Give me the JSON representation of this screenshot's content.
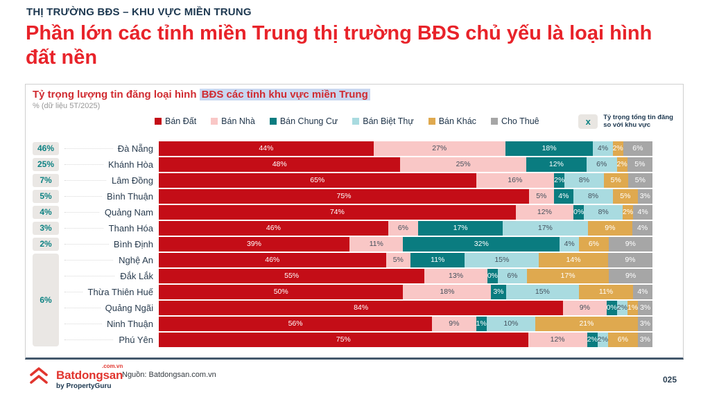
{
  "header": {
    "eyebrow": "THỊ TRƯỜNG BĐS – KHU VỰC MIỀN TRUNG",
    "title": "Phần lớn các tỉnh miền Trung thị trường BĐS chủ yếu là loại hình đất nền"
  },
  "panel": {
    "title_plain": "Tỷ trọng lượng tin đăng loại hình ",
    "title_highlight": "BĐS các tỉnh khu vực miền Trung",
    "subtitle": "% (dữ liệu 5T/2025)",
    "note_badge": "x",
    "note_line1": "Tỷ trọng tổng tin đăng",
    "note_line2": "so với khu vực"
  },
  "chart_data": {
    "type": "bar",
    "orientation": "horizontal-stacked",
    "title": "Tỷ trọng lượng tin đăng loại hình BĐS các tỉnh khu vực miền Trung",
    "subtitle": "% (dữ liệu 5T/2025)",
    "unit": "%",
    "xlim": [
      0,
      100
    ],
    "legend_position": "top",
    "series_names": [
      "Bán Đất",
      "Bán Nhà",
      "Bán Chung Cư",
      "Bán Biệt Thự",
      "Bán Khác",
      "Cho Thuê"
    ],
    "series_colors": [
      "#c40d17",
      "#f9c7c6",
      "#0a7c80",
      "#a9dbe0",
      "#dfa94f",
      "#a6a6a6"
    ],
    "series_label_colors": [
      "#ffffff",
      "#44505c",
      "#ffffff",
      "#44505c",
      "#ffffff",
      "#ffffff"
    ],
    "categories": [
      "Đà Nẵng",
      "Khánh Hòa",
      "Lâm Đồng",
      "Bình Thuận",
      "Quảng Nam",
      "Thanh Hóa",
      "Bình Định",
      "Nghệ An",
      "Đắk Lắk",
      "Thừa Thiên Huế",
      "Quảng Ngãi",
      "Ninh Thuận",
      "Phú Yên"
    ],
    "rows": [
      {
        "province": "Đà Nẵng",
        "share": "46%",
        "values": [
          44,
          27,
          18,
          4,
          2,
          6
        ]
      },
      {
        "province": "Khánh Hòa",
        "share": "25%",
        "values": [
          48,
          25,
          12,
          6,
          2,
          5
        ]
      },
      {
        "province": "Lâm Đồng",
        "share": "7%",
        "values": [
          65,
          16,
          2,
          8,
          5,
          5
        ]
      },
      {
        "province": "Bình Thuận",
        "share": "5%",
        "values": [
          75,
          5,
          4,
          8,
          5,
          3
        ]
      },
      {
        "province": "Quảng Nam",
        "share": "4%",
        "values": [
          74,
          12,
          0,
          8,
          2,
          4
        ]
      },
      {
        "province": "Thanh Hóa",
        "share": "3%",
        "values": [
          46,
          6,
          17,
          17,
          9,
          4
        ]
      },
      {
        "province": "Bình Định",
        "share": "2%",
        "values": [
          39,
          11,
          32,
          4,
          6,
          9
        ]
      },
      {
        "province": "Nghệ An",
        "share": null,
        "values": [
          46,
          5,
          11,
          15,
          14,
          9
        ]
      },
      {
        "province": "Đắk Lắk",
        "share": null,
        "values": [
          55,
          13,
          0,
          6,
          17,
          9
        ]
      },
      {
        "province": "Thừa Thiên Huế",
        "share": null,
        "values": [
          50,
          18,
          3,
          15,
          11,
          4
        ]
      },
      {
        "province": "Quảng Ngãi",
        "share": null,
        "values": [
          84,
          9,
          0,
          2,
          1,
          3
        ]
      },
      {
        "province": "Ninh Thuận",
        "share": null,
        "values": [
          56,
          9,
          1,
          10,
          21,
          3
        ]
      },
      {
        "province": "Phú Yên",
        "share": null,
        "values": [
          75,
          12,
          2,
          2,
          6,
          3
        ]
      }
    ],
    "group_share": {
      "label": "6%",
      "start_row": 8,
      "end_row": 13
    },
    "note": "Tỷ trọng tổng tin đăng so với khu vực"
  },
  "footer": {
    "logo_name": "Batdongsan",
    "logo_sup": ".com.vn",
    "logo_sub": "by PropertyGuru",
    "source": "Nguồn: Batdongsan.com.vn",
    "page": "025"
  }
}
